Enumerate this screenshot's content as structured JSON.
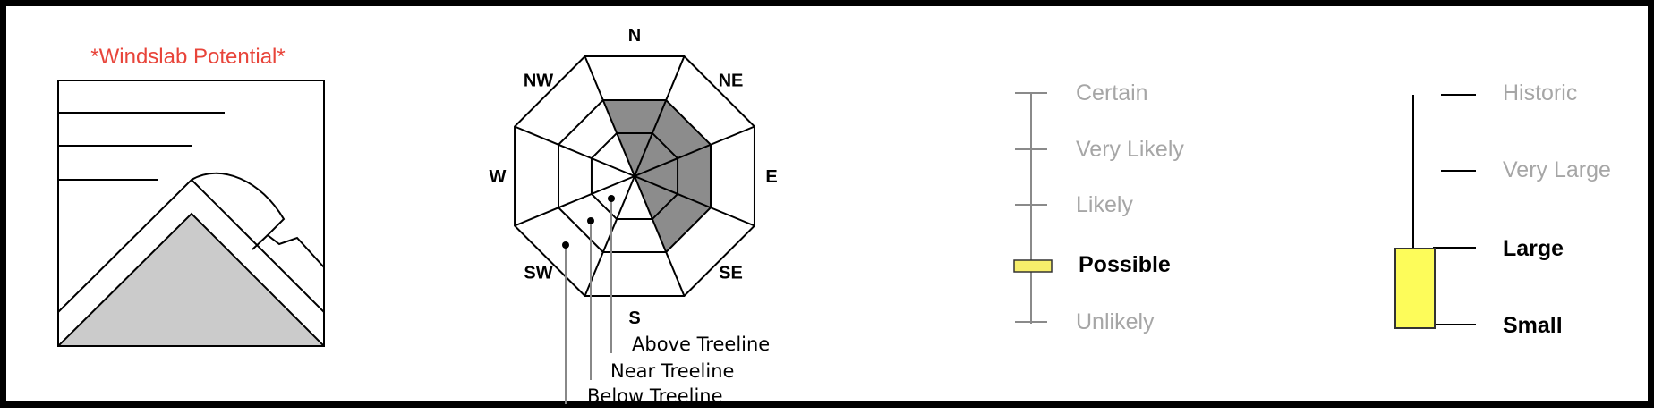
{
  "problem_type": {
    "title": "*Windslab Potential*",
    "title_color": "#e8443a",
    "icon": "wind-slab-icon"
  },
  "aspect_elevation": {
    "directions": [
      "N",
      "NE",
      "E",
      "SE",
      "S",
      "SW",
      "W",
      "NW"
    ],
    "elevation_labels": {
      "above": "Above Treeline",
      "near": "Near Treeline",
      "below": "Below Treeline"
    },
    "highlight_color": "#8c8c8c",
    "highlighted": {
      "above": [
        "N",
        "NE",
        "E",
        "SE"
      ],
      "near": [
        "N",
        "NE",
        "E",
        "SE"
      ],
      "below": []
    }
  },
  "likelihood": {
    "levels": [
      "Certain",
      "Very Likely",
      "Likely",
      "Possible",
      "Unlikely"
    ],
    "selected": "Possible",
    "marker_color": "#f7ee6b"
  },
  "size": {
    "levels": [
      "Historic",
      "Very Large",
      "Large",
      "Small"
    ],
    "range": [
      "Small",
      "Large"
    ],
    "bar_color": "#fdfc5a"
  }
}
